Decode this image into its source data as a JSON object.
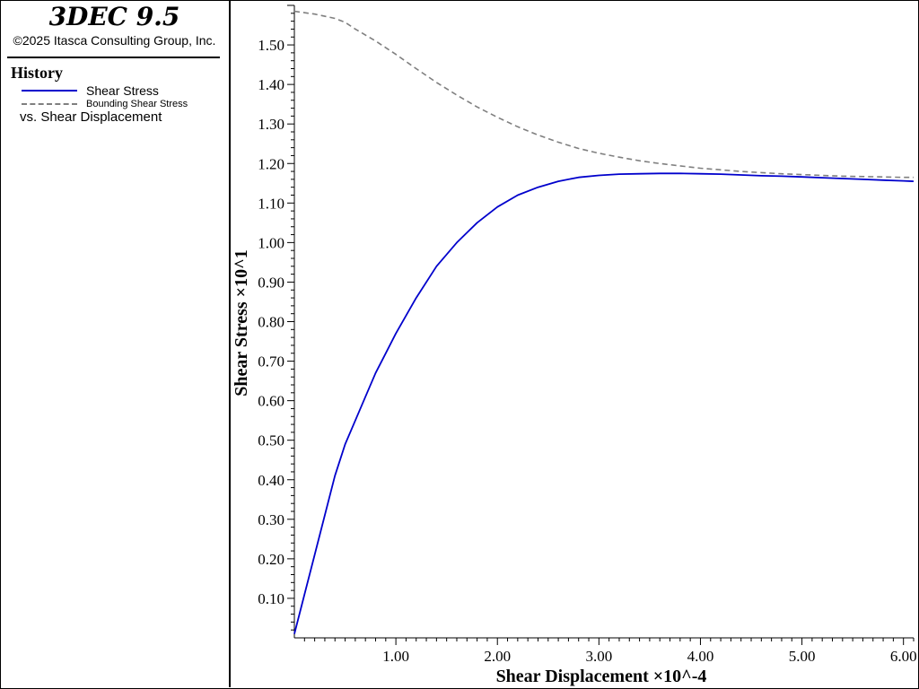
{
  "app": {
    "title": "3DEC 9.5",
    "copyright": "©2025 Itasca Consulting Group, Inc."
  },
  "legend": {
    "heading": "History",
    "vs_label": "vs. Shear Displacement"
  },
  "chart_data": {
    "type": "line",
    "xlabel": "Shear Displacement ×10^-4",
    "ylabel": "Shear Stress ×10^1",
    "xlim": [
      0.0,
      6.1
    ],
    "ylim": [
      0.0,
      1.6
    ],
    "x_ticks": [
      "1.00",
      "2.00",
      "3.00",
      "4.00",
      "5.00",
      "6.00"
    ],
    "y_ticks": [
      "0.10",
      "0.20",
      "0.30",
      "0.40",
      "0.50",
      "0.60",
      "0.70",
      "0.80",
      "0.90",
      "1.00",
      "1.10",
      "1.20",
      "1.30",
      "1.40",
      "1.50"
    ],
    "series": [
      {
        "name": "Shear Stress",
        "color": "#0000cc",
        "style": "solid",
        "x": [
          0.0,
          0.1,
          0.2,
          0.3,
          0.4,
          0.5,
          0.6,
          0.7,
          0.8,
          0.9,
          1.0,
          1.2,
          1.4,
          1.6,
          1.8,
          2.0,
          2.2,
          2.4,
          2.6,
          2.8,
          3.0,
          3.2,
          3.4,
          3.6,
          3.8,
          4.0,
          4.2,
          4.4,
          4.6,
          4.8,
          5.0,
          5.2,
          5.4,
          5.6,
          5.8,
          6.0,
          6.1
        ],
        "y": [
          0.01,
          0.11,
          0.21,
          0.31,
          0.41,
          0.49,
          0.55,
          0.61,
          0.67,
          0.72,
          0.77,
          0.86,
          0.94,
          1.0,
          1.05,
          1.09,
          1.12,
          1.14,
          1.155,
          1.165,
          1.17,
          1.173,
          1.174,
          1.175,
          1.175,
          1.174,
          1.173,
          1.171,
          1.169,
          1.168,
          1.166,
          1.164,
          1.162,
          1.16,
          1.158,
          1.156,
          1.155
        ]
      },
      {
        "name": "Bounding Shear Stress",
        "color": "#7f7f7f",
        "style": "dashed",
        "x": [
          0.0,
          0.2,
          0.4,
          0.5,
          0.6,
          0.8,
          1.0,
          1.2,
          1.4,
          1.6,
          1.8,
          2.0,
          2.2,
          2.4,
          2.6,
          2.8,
          3.0,
          3.2,
          3.4,
          3.6,
          3.8,
          4.0,
          4.2,
          4.4,
          4.6,
          4.8,
          5.0,
          5.2,
          5.4,
          5.6,
          5.8,
          6.0,
          6.1
        ],
        "y": [
          1.585,
          1.578,
          1.567,
          1.557,
          1.54,
          1.51,
          1.476,
          1.44,
          1.405,
          1.373,
          1.343,
          1.317,
          1.293,
          1.272,
          1.254,
          1.238,
          1.226,
          1.216,
          1.207,
          1.2,
          1.194,
          1.188,
          1.184,
          1.18,
          1.177,
          1.174,
          1.172,
          1.17,
          1.168,
          1.167,
          1.166,
          1.165,
          1.165
        ]
      }
    ]
  }
}
